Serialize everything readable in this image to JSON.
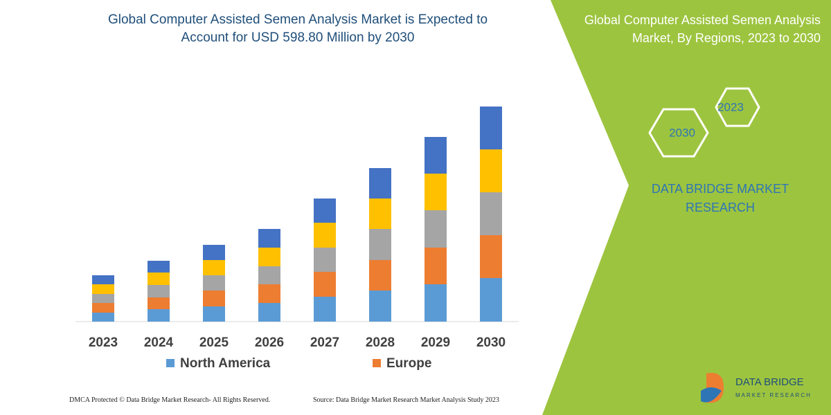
{
  "chart_data": {
    "type": "stacked_bar",
    "title": "Global Computer Assisted Semen Analysis Market is Expected to Account for USD 598.80 Million by 2030",
    "categories": [
      "2023",
      "2024",
      "2025",
      "2026",
      "2027",
      "2028",
      "2029",
      "2030"
    ],
    "series": [
      {
        "name": "North America",
        "color": "#5b9bd5",
        "values": [
          13,
          18,
          22,
          27,
          36,
          45,
          54,
          63
        ]
      },
      {
        "name": "Europe",
        "color": "#ed7d31",
        "values": [
          14,
          17,
          23,
          27,
          36,
          44,
          53,
          62
        ]
      },
      {
        "color": "#a5a5a5",
        "values": [
          13,
          18,
          22,
          26,
          35,
          45,
          54,
          62
        ]
      },
      {
        "color": "#ffc000",
        "values": [
          14,
          18,
          22,
          27,
          36,
          44,
          53,
          62
        ]
      },
      {
        "color": "#4472c4",
        "values": [
          13,
          17,
          22,
          27,
          35,
          44,
          53,
          62
        ]
      }
    ]
  },
  "side_panel": {
    "title": "Global Computer Assisted Semen Analysis Market, By Regions, 2023 to 2030",
    "hexagons": [
      "2023",
      "2030"
    ],
    "brand": "DATA BRIDGE MARKET RESEARCH"
  },
  "logo": {
    "name": "DATA BRIDGE",
    "tagline": "MARKET RESEARCH"
  },
  "footer": {
    "left": "DMCA Protected © Data Bridge Market Research- All Rights Reserved.",
    "right": "Source: Data Bridge Market Research Market Analysis Study 2023"
  }
}
